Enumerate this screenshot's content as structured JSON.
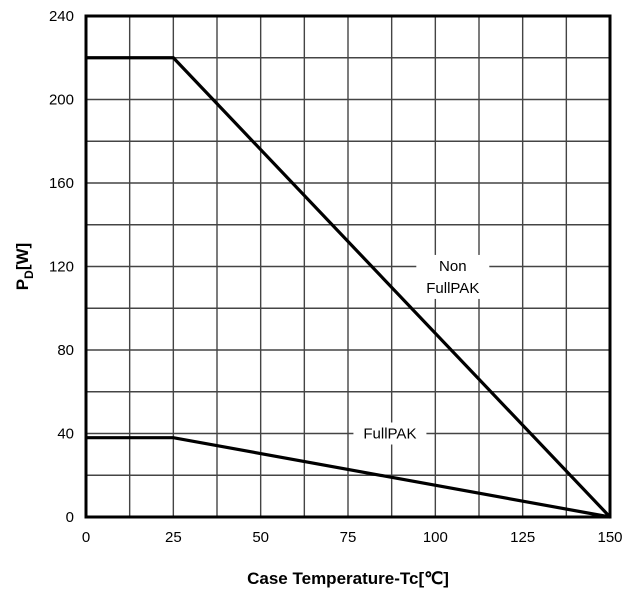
{
  "chart_data": {
    "type": "line",
    "title": "",
    "xlabel": "Case Temperature-Tc[℃]",
    "ylabel": {
      "main": "P",
      "sub": "D",
      "unit": "[W]"
    },
    "xlim": [
      0,
      150
    ],
    "ylim": [
      0,
      240
    ],
    "x_ticks": [
      0,
      25,
      50,
      75,
      100,
      125,
      150
    ],
    "y_ticks": [
      0,
      40,
      80,
      120,
      160,
      200,
      240
    ],
    "grid": true,
    "series": [
      {
        "name": "Non FullPAK",
        "x": [
          0,
          25,
          150
        ],
        "y": [
          220,
          220,
          0
        ]
      },
      {
        "name": "FullPAK",
        "x": [
          0,
          25,
          150
        ],
        "y": [
          38,
          38,
          0
        ]
      }
    ],
    "annotations": [
      {
        "series": 0,
        "lines": [
          "Non",
          "FullPAK"
        ],
        "x": 105,
        "y": 115
      },
      {
        "series": 1,
        "lines": [
          "FullPAK"
        ],
        "x": 87,
        "y": 40
      }
    ]
  }
}
